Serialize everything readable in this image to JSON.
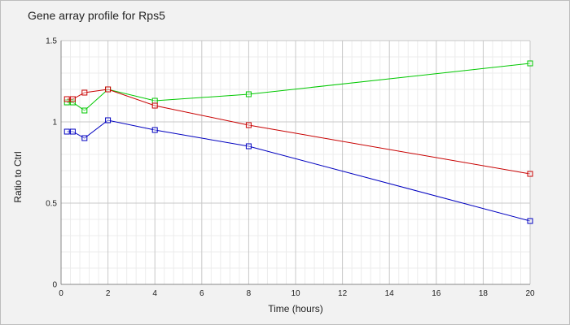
{
  "chart_data": {
    "type": "line",
    "title": "Gene array profile for Rps5",
    "xlabel": "Time (hours)",
    "ylabel": "Ratio to Ctrl",
    "xlim": [
      0,
      20
    ],
    "ylim": [
      0,
      1.5
    ],
    "xticks": [
      "0",
      "2",
      "4",
      "6",
      "8",
      "10",
      "12",
      "14",
      "16",
      "18",
      "20"
    ],
    "yticks": [
      "0",
      "0.5",
      "1",
      "1.5"
    ],
    "grid": true,
    "marker": "square",
    "series": [
      {
        "color": "#00c800",
        "x": [
          0.25,
          0.5,
          1,
          2,
          4,
          8,
          20
        ],
        "y": [
          1.12,
          1.12,
          1.07,
          1.2,
          1.13,
          1.17,
          1.36
        ]
      },
      {
        "color": "#c80000",
        "x": [
          0.25,
          0.5,
          1,
          2,
          4,
          8,
          20
        ],
        "y": [
          1.14,
          1.14,
          1.18,
          1.2,
          1.1,
          0.98,
          0.68
        ]
      },
      {
        "color": "#0000c0",
        "x": [
          0.25,
          0.5,
          1,
          2,
          4,
          8,
          20
        ],
        "y": [
          0.94,
          0.94,
          0.9,
          1.01,
          0.95,
          0.85,
          0.39
        ]
      }
    ]
  }
}
